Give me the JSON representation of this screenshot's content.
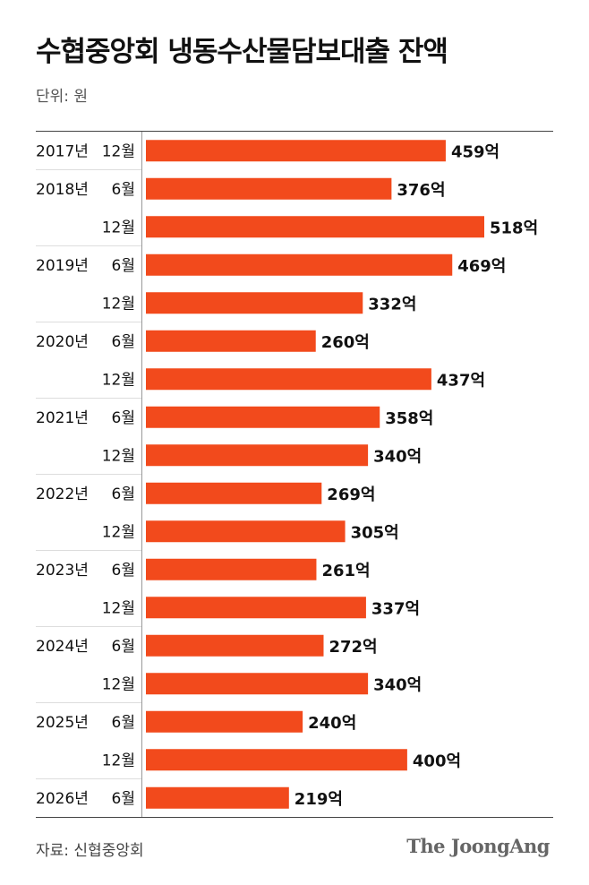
{
  "title": "수협중앙회 냉동수산물담보대출 잔액",
  "unit_label": "단위: 원",
  "source": "자료: 신협중앙회",
  "brand": "The JoongAng",
  "colors": {
    "bar": "#f24a1c",
    "text": "#111111",
    "divider": "#dddddd"
  },
  "chart_data": {
    "type": "bar",
    "orientation": "horizontal",
    "value_suffix": "억",
    "categories": [
      {
        "year": "2017년",
        "month": "12월",
        "value": 459
      },
      {
        "year": "2018년",
        "month": "6월",
        "value": 376
      },
      {
        "year": "",
        "month": "12월",
        "value": 518
      },
      {
        "year": "2019년",
        "month": "6월",
        "value": 469
      },
      {
        "year": "",
        "month": "12월",
        "value": 332
      },
      {
        "year": "2020년",
        "month": "6월",
        "value": 260
      },
      {
        "year": "",
        "month": "12월",
        "value": 437
      },
      {
        "year": "2021년",
        "month": "6월",
        "value": 358
      },
      {
        "year": "",
        "month": "12월",
        "value": 340
      },
      {
        "year": "2022년",
        "month": "6월",
        "value": 269
      },
      {
        "year": "",
        "month": "12월",
        "value": 305
      },
      {
        "year": "2023년",
        "month": "6월",
        "value": 261
      },
      {
        "year": "",
        "month": "12월",
        "value": 337
      },
      {
        "year": "2024년",
        "month": "6월",
        "value": 272
      },
      {
        "year": "",
        "month": "12월",
        "value": 340
      },
      {
        "year": "2025년",
        "month": "6월",
        "value": 240
      },
      {
        "year": "",
        "month": "12월",
        "value": 400
      },
      {
        "year": "2026년",
        "month": "6월",
        "value": 219
      }
    ],
    "xlim": [
      0,
      518
    ]
  }
}
